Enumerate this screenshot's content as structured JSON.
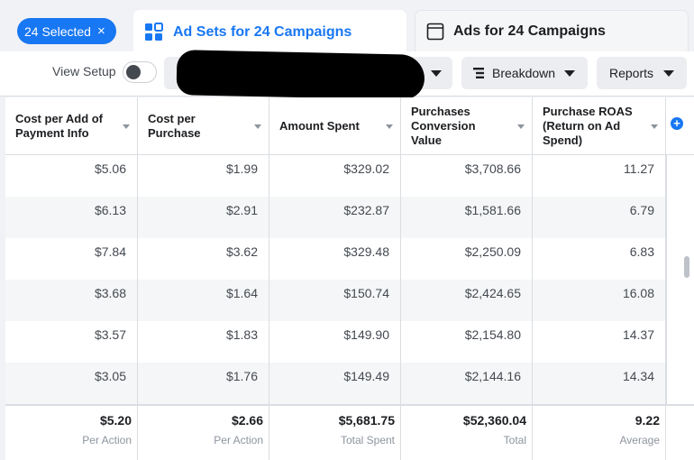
{
  "selection": {
    "label": "24 Selected",
    "close": "×"
  },
  "tabs": [
    {
      "label": "Ad Sets for 24 Campaigns",
      "icon": "grid-icon",
      "active": true
    },
    {
      "label": "Ads for 24 Campaigns",
      "icon": "window-icon",
      "active": false
    }
  ],
  "toolbar": {
    "view_setup": "View Setup",
    "view_setup_on": false,
    "breakdown": "Breakdown",
    "reports": "Reports"
  },
  "columns": [
    "Cost per Add of Payment Info",
    "Cost per Purchase",
    "Amount Spent",
    "Purchases Conversion Value",
    "Purchase ROAS (Return on Ad Spend)"
  ],
  "rows": [
    [
      "$5.06",
      "$1.99",
      "$329.02",
      "$3,708.66",
      "11.27"
    ],
    [
      "$6.13",
      "$2.91",
      "$232.87",
      "$1,581.66",
      "6.79"
    ],
    [
      "$7.84",
      "$3.62",
      "$329.48",
      "$2,250.09",
      "6.83"
    ],
    [
      "$3.68",
      "$1.64",
      "$150.74",
      "$2,424.65",
      "16.08"
    ],
    [
      "$3.57",
      "$1.83",
      "$149.90",
      "$2,154.80",
      "14.37"
    ],
    [
      "$3.05",
      "$1.76",
      "$149.49",
      "$2,144.16",
      "14.34"
    ]
  ],
  "totals": [
    {
      "value": "$5.20",
      "label": "Per Action"
    },
    {
      "value": "$2.66",
      "label": "Per Action"
    },
    {
      "value": "$5,681.75",
      "label": "Total Spent"
    },
    {
      "value": "$52,360.04",
      "label": "Total"
    },
    {
      "value": "9.22",
      "label": "Average"
    }
  ],
  "colors": {
    "accent": "#1877f2",
    "border": "#dadde1",
    "muted": "#8d949e"
  }
}
